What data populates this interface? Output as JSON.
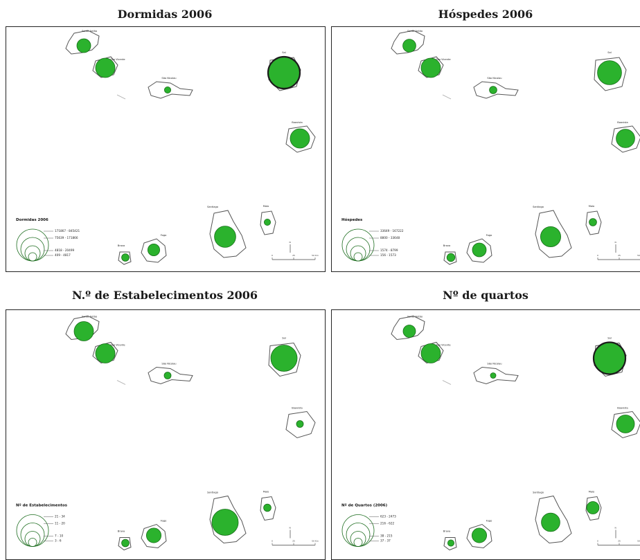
{
  "panels": [
    {
      "title": "Dormidas 2006",
      "legend": {
        "title": "Dormidas 2006",
        "classes": [
          "171867 - 845421",
          "75639 - 171866",
          "4818 - 20499",
          "409 - 4817"
        ]
      },
      "islands": [
        {
          "label": "Santo Antão",
          "level": 0.35
        },
        {
          "label": "São Vicente",
          "level": 0.55
        },
        {
          "label": "São Nicolau",
          "level": 0.08
        },
        {
          "label": "Sal",
          "level": 1.0,
          "dark": true
        },
        {
          "label": "Boavista",
          "level": 0.55
        },
        {
          "label": "Santiago",
          "level": 0.62
        },
        {
          "label": "Maio",
          "level": 0.08
        },
        {
          "label": "Fogo",
          "level": 0.28
        },
        {
          "label": "Brava",
          "level": 0.12
        }
      ]
    },
    {
      "title": "Hóspedes 2006",
      "legend": {
        "title": "Hóspedes",
        "classes": [
          "33649 - 167222",
          "8800 - 33648",
          "1574 - 8799",
          "156 - 1573"
        ]
      },
      "islands": [
        {
          "label": "Santo Antão",
          "level": 0.32
        },
        {
          "label": "São Vicente",
          "level": 0.55
        },
        {
          "label": "São Nicolau",
          "level": 0.12
        },
        {
          "label": "Sal",
          "level": 0.72
        },
        {
          "label": "Boavista",
          "level": 0.52
        },
        {
          "label": "Santiago",
          "level": 0.58
        },
        {
          "label": "Maio",
          "level": 0.12
        },
        {
          "label": "Fogo",
          "level": 0.35
        },
        {
          "label": "Brava",
          "level": 0.14
        }
      ]
    },
    {
      "title": "N.º de Estabelecimentos 2006",
      "legend": {
        "title": "Nº de Estabelecimentos",
        "classes": [
          "21 - 34",
          "11 - 20",
          "7 - 10",
          "3 - 6"
        ]
      },
      "islands": [
        {
          "label": "Santo Antão",
          "level": 0.55
        },
        {
          "label": "São Vicente",
          "level": 0.55
        },
        {
          "label": "São Nicolau",
          "level": 0.1
        },
        {
          "label": "Sal",
          "level": 0.8
        },
        {
          "label": "Boavista",
          "level": 0.1
        },
        {
          "label": "Santiago",
          "level": 0.8
        },
        {
          "label": "Maio",
          "level": 0.12
        },
        {
          "label": "Fogo",
          "level": 0.38
        },
        {
          "label": "Brava",
          "level": 0.12
        }
      ]
    },
    {
      "title": "Nº de quartos",
      "legend": {
        "title": "Nº de Quartos (2006)",
        "classes": [
          "623 - 2473",
          "216 - 622",
          "38 - 215",
          "37 - 37"
        ]
      },
      "islands": [
        {
          "label": "Santo Antão",
          "level": 0.3
        },
        {
          "label": "São Vicente",
          "level": 0.55
        },
        {
          "label": "São Nicolau",
          "level": 0.05
        },
        {
          "label": "Sal",
          "level": 1.0,
          "dark": true
        },
        {
          "label": "Boavista",
          "level": 0.5
        },
        {
          "label": "Santiago",
          "level": 0.52
        },
        {
          "label": "Maio",
          "level": 0.3
        },
        {
          "label": "Fogo",
          "level": 0.38
        },
        {
          "label": "Brava",
          "level": 0.08
        }
      ]
    }
  ],
  "map_furniture": {
    "north_symbol": "N",
    "scale_labels": [
      "0",
      "25",
      "50 Km"
    ]
  }
}
